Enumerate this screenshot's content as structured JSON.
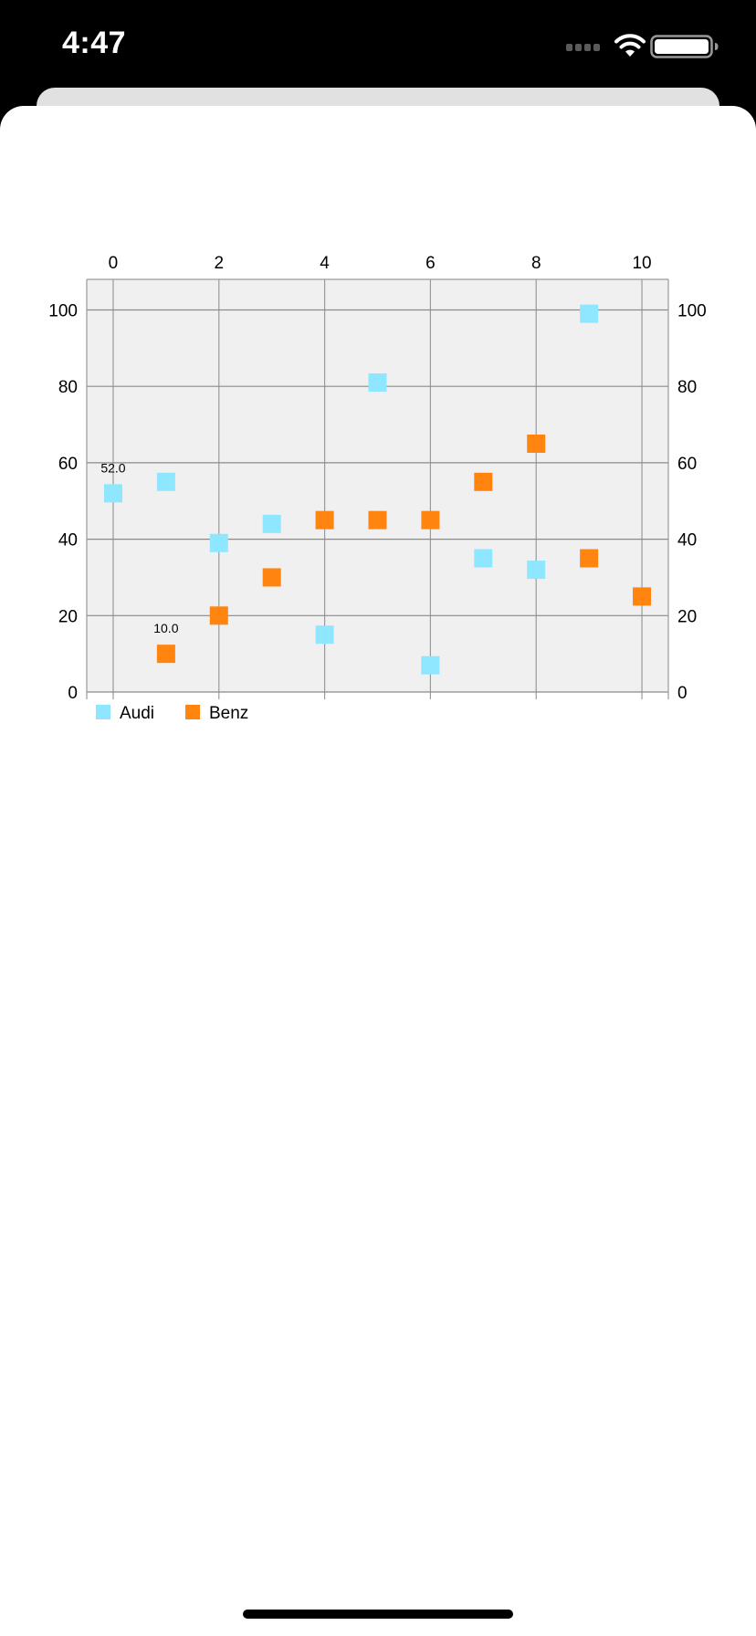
{
  "status_bar": {
    "time": "4:47",
    "icons": [
      "cellular-signal-icon",
      "wifi-icon",
      "battery-icon"
    ]
  },
  "chart_data": {
    "type": "scatter",
    "title": "",
    "xlabel": "",
    "ylabel": "",
    "xlim": [
      -0.5,
      10.5
    ],
    "ylim": [
      0,
      108
    ],
    "x_ticks": [
      0,
      2,
      4,
      6,
      8,
      10
    ],
    "y_ticks": [
      0,
      20,
      40,
      60,
      80,
      100
    ],
    "x_axis_position": "top",
    "y_axes": [
      "left",
      "right"
    ],
    "grid": true,
    "background": "#f0f0f0",
    "legend_position": "bottom-left",
    "marker": "square",
    "series": [
      {
        "name": "Audi",
        "color": "#8fe6ff",
        "points": [
          [
            0,
            52
          ],
          [
            1,
            55
          ],
          [
            2,
            39
          ],
          [
            3,
            44
          ],
          [
            4,
            15
          ],
          [
            5,
            81
          ],
          [
            6,
            7
          ],
          [
            7,
            35
          ],
          [
            8,
            32
          ],
          [
            9,
            99
          ]
        ]
      },
      {
        "name": "Benz",
        "color": "#ff8410",
        "points": [
          [
            1,
            10
          ],
          [
            2,
            20
          ],
          [
            3,
            30
          ],
          [
            4,
            45
          ],
          [
            5,
            45
          ],
          [
            6,
            45
          ],
          [
            7,
            55
          ],
          [
            8,
            65
          ],
          [
            9,
            35
          ],
          [
            10,
            25
          ]
        ]
      }
    ],
    "data_labels": [
      {
        "series": 0,
        "index": 0,
        "text": "52.0"
      },
      {
        "series": 1,
        "index": 0,
        "text": "10.0"
      }
    ]
  }
}
